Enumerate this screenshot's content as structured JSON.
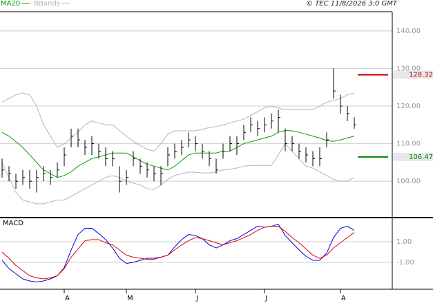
{
  "chart_data": [
    {
      "type": "hlc",
      "credit": "© TEC 11/8/2026 3:0 GMT",
      "ylim": [
        90.5,
        145.1
      ],
      "yticks": [
        {
          "value": 100,
          "label": "100.00"
        },
        {
          "value": 110,
          "label": "110.00"
        },
        {
          "value": 120,
          "label": "120.00"
        },
        {
          "value": 130,
          "label": "130.00"
        },
        {
          "value": 140,
          "label": "140.00"
        }
      ],
      "grid": true,
      "bar_color": "#000000",
      "months": [
        {
          "label": "A",
          "index": 9
        },
        {
          "label": "M",
          "index": 18
        },
        {
          "label": "J",
          "index": 28
        },
        {
          "label": "J",
          "index": 38
        },
        {
          "label": "A",
          "index": 49
        }
      ],
      "bars": {
        "high": [
          106,
          104,
          102,
          103,
          103,
          103,
          104,
          103,
          105,
          109,
          114,
          114,
          111,
          112,
          110,
          109,
          108,
          104,
          103,
          108,
          106,
          105,
          104,
          104,
          109,
          110,
          111,
          113,
          112,
          110,
          108,
          106,
          110,
          112,
          112,
          115,
          117,
          116,
          117,
          118,
          119,
          114,
          112,
          110,
          109,
          108,
          109,
          113,
          130,
          123,
          120,
          117
        ],
        "low": [
          101,
          100,
          98,
          99,
          98,
          97,
          100,
          99,
          101,
          104,
          109,
          109,
          107,
          107,
          106,
          104,
          104,
          97,
          99,
          104,
          102,
          101,
          100,
          99,
          104,
          106,
          107,
          109,
          108,
          106,
          104,
          102,
          106,
          108,
          107,
          111,
          113,
          112,
          113,
          114,
          113,
          108,
          108,
          106,
          105,
          104,
          104,
          109,
          122,
          118,
          116,
          114
        ],
        "close": [
          103,
          102,
          100,
          101,
          100,
          101,
          102,
          101,
          103,
          107,
          112,
          111,
          109,
          110,
          108,
          106,
          106,
          100,
          101,
          106,
          104,
          103,
          102,
          102,
          107,
          108,
          109,
          111,
          110,
          108,
          106,
          103,
          108,
          110,
          110,
          113,
          115,
          114,
          115,
          116,
          117,
          110,
          110,
          108,
          107,
          106,
          106,
          111,
          124,
          120,
          118,
          115
        ]
      },
      "series": [
        {
          "name": "MA20",
          "color": "#00a000",
          "values": [
            113,
            112,
            110.5,
            109,
            107,
            105,
            103,
            102,
            101,
            101.5,
            102.5,
            104,
            105,
            106,
            106.5,
            107,
            107.5,
            107.5,
            107.5,
            106.5,
            105.5,
            104.5,
            104,
            103.5,
            103,
            104,
            105.5,
            107,
            107.5,
            107.5,
            107.5,
            107.5,
            108,
            108,
            109,
            110,
            110.5,
            111,
            111.5,
            112,
            113,
            113.5,
            113.4,
            113,
            112.5,
            112,
            111.5,
            110.8,
            110.6,
            111,
            111.5,
            112
          ]
        },
        {
          "name": "BBands",
          "color": "#b4b4b4",
          "upper": [
            121,
            122,
            123,
            123.5,
            123,
            120,
            115,
            112,
            109,
            110,
            111.5,
            113,
            115,
            116,
            115.5,
            115,
            115,
            113.5,
            112,
            110.6,
            109.5,
            108.5,
            108,
            110,
            112.5,
            113.4,
            113.4,
            113.4,
            113.4,
            113.8,
            114.3,
            114.5,
            115,
            115.5,
            116,
            116.5,
            117.5,
            118.5,
            119.5,
            120,
            119.5,
            119,
            119,
            119,
            119,
            119,
            120,
            121,
            121.5,
            122,
            123,
            123.5
          ],
          "lower": [
            105,
            101,
            97,
            95,
            94.5,
            94,
            94,
            94.5,
            95,
            95,
            96,
            97,
            98,
            99,
            100,
            101,
            101.5,
            101,
            100,
            99.5,
            99,
            98,
            97.8,
            99,
            100.5,
            101.5,
            102,
            102.4,
            102.4,
            102.2,
            102.2,
            102.5,
            103,
            103.2,
            103.5,
            104,
            104.2,
            104.2,
            104.2,
            104.2,
            107,
            110,
            108,
            106,
            104,
            103.5,
            102.5,
            101.5,
            100.5,
            100,
            100,
            101
          ]
        }
      ],
      "markers": [
        {
          "value": 128.32,
          "color": "#c00000"
        },
        {
          "value": 106.47,
          "color": "#008000"
        }
      ]
    },
    {
      "type": "line",
      "title": "MACD",
      "ylim": [
        -3.6,
        3.27
      ],
      "yticks": [
        {
          "value": -1,
          "label": "-1.00"
        },
        {
          "value": 1,
          "label": "1.00"
        }
      ],
      "grid": true,
      "series": [
        {
          "color": "#0000e0",
          "values": [
            -0.8,
            -1.6,
            -2.1,
            -2.6,
            -2.8,
            -2.9,
            -2.8,
            -2.6,
            -2.3,
            -1.5,
            0.2,
            1.7,
            2.3,
            2.3,
            1.8,
            1.2,
            0.4,
            -0.6,
            -1.1,
            -1.0,
            -0.8,
            -0.6,
            -0.6,
            -0.5,
            -0.3,
            0.5,
            1.2,
            1.7,
            1.6,
            1.3,
            0.7,
            0.4,
            0.7,
            1.1,
            1.3,
            1.7,
            2.1,
            2.5,
            2.4,
            2.5,
            2.7,
            1.6,
            0.9,
            0.2,
            -0.4,
            -0.8,
            -0.8,
            -0.1,
            1.4,
            2.3,
            2.5,
            2.1
          ]
        },
        {
          "color": "#e00000",
          "values": [
            0,
            -0.6,
            -1.3,
            -1.8,
            -2.3,
            -2.5,
            -2.6,
            -2.5,
            -2.3,
            -1.6,
            -0.5,
            0.3,
            1.1,
            1.2,
            1.2,
            0.9,
            0.7,
            0.2,
            -0.3,
            -0.5,
            -0.6,
            -0.7,
            -0.7,
            -0.5,
            -0.3,
            0.2,
            0.7,
            1.1,
            1.4,
            1.3,
            1.1,
            0.9,
            0.7,
            0.9,
            1.1,
            1.4,
            1.7,
            2.1,
            2.4,
            2.5,
            2.5,
            2.0,
            1.4,
            0.9,
            0.3,
            -0.3,
            -0.6,
            -0.3,
            0.4,
            0.9,
            1.4,
            1.9
          ]
        }
      ]
    }
  ]
}
